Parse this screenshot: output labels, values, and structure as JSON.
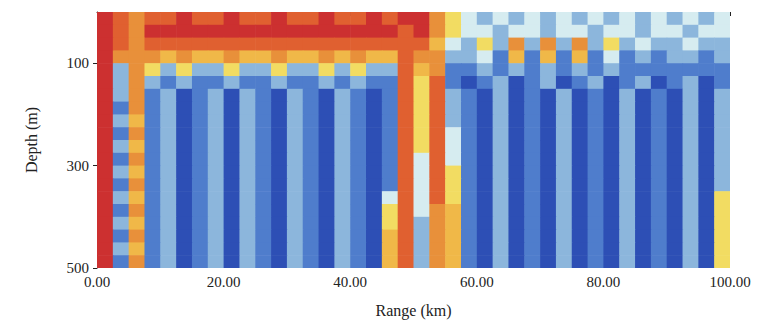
{
  "chart_data": {
    "type": "heatmap",
    "x_label": "Range (km)",
    "y_label": "Depth (m)",
    "xlim": [
      0,
      100
    ],
    "ylim": [
      0,
      500
    ],
    "xticks": [
      {
        "value": 0,
        "label": "0.00"
      },
      {
        "value": 20,
        "label": "20.00"
      },
      {
        "value": 40,
        "label": "40.00"
      },
      {
        "value": 60,
        "label": "60.00"
      },
      {
        "value": 80,
        "label": "80.00"
      },
      {
        "value": 100,
        "label": "100.00"
      }
    ],
    "yticks": [
      100,
      300,
      500
    ],
    "grid": false,
    "range_edges": [
      0,
      2.5,
      5,
      7.5,
      10,
      12.5,
      15,
      17.5,
      20,
      22.5,
      25,
      27.5,
      30,
      32.5,
      35,
      37.5,
      40,
      42.5,
      45,
      47.5,
      50,
      52.5,
      55,
      57.5,
      60,
      62.5,
      65,
      67.5,
      70,
      72.5,
      75,
      77.5,
      80,
      82.5,
      85,
      87.5,
      90,
      92.5,
      95,
      97.5,
      100
    ],
    "depth_edges": [
      0,
      25,
      50,
      75,
      100,
      125,
      150,
      175,
      200,
      225,
      250,
      275,
      300,
      325,
      350,
      375,
      400,
      425,
      450,
      475,
      500
    ],
    "color_range": [
      0,
      9
    ],
    "colors": [
      "#1c2a8c",
      "#2d4fb5",
      "#4f7dcc",
      "#8cb6dc",
      "#d6ecf0",
      "#f2dc62",
      "#f0b848",
      "#e8903a",
      "#e06030",
      "#cc3030"
    ],
    "cells": [
      [
        9,
        8,
        7,
        8,
        8,
        9,
        8,
        8,
        9,
        8,
        8,
        9,
        8,
        8,
        9,
        8,
        8,
        9,
        8,
        9,
        9,
        7,
        5,
        4,
        3,
        4,
        3,
        4,
        3,
        4,
        3,
        4,
        3,
        4,
        3,
        4,
        3,
        4,
        3,
        4
      ],
      [
        9,
        8,
        7,
        9,
        9,
        9,
        9,
        9,
        9,
        9,
        9,
        9,
        9,
        9,
        9,
        9,
        9,
        9,
        9,
        8,
        9,
        7,
        5,
        4,
        4,
        3,
        4,
        4,
        3,
        4,
        4,
        3,
        4,
        4,
        3,
        4,
        4,
        3,
        4,
        4
      ],
      [
        9,
        8,
        7,
        8,
        8,
        8,
        8,
        8,
        8,
        8,
        8,
        8,
        8,
        8,
        8,
        8,
        8,
        8,
        8,
        8,
        8,
        6,
        4,
        3,
        5,
        3,
        7,
        3,
        7,
        3,
        7,
        3,
        5,
        3,
        4,
        3,
        3,
        4,
        3,
        3
      ],
      [
        9,
        7,
        7,
        7,
        6,
        7,
        6,
        6,
        7,
        6,
        6,
        7,
        6,
        6,
        7,
        6,
        7,
        6,
        6,
        8,
        7,
        7,
        3,
        3,
        4,
        2,
        6,
        2,
        6,
        2,
        6,
        2,
        4,
        2,
        3,
        2,
        3,
        3,
        2,
        3
      ],
      [
        9,
        3,
        7,
        5,
        3,
        5,
        3,
        3,
        5,
        3,
        3,
        5,
        3,
        3,
        5,
        3,
        5,
        3,
        3,
        8,
        6,
        7,
        2,
        2,
        3,
        2,
        3,
        2,
        3,
        2,
        3,
        2,
        3,
        2,
        2,
        2,
        2,
        2,
        2,
        2
      ],
      [
        9,
        3,
        7,
        3,
        2,
        3,
        2,
        2,
        3,
        2,
        2,
        3,
        2,
        2,
        3,
        2,
        3,
        2,
        2,
        8,
        5,
        8,
        2,
        1,
        2,
        3,
        1,
        2,
        3,
        1,
        2,
        3,
        1,
        2,
        3,
        1,
        2,
        3,
        1,
        2
      ],
      [
        9,
        3,
        7,
        2,
        3,
        1,
        2,
        3,
        1,
        3,
        2,
        1,
        3,
        2,
        1,
        3,
        2,
        1,
        2,
        8,
        5,
        8,
        3,
        2,
        1,
        3,
        1,
        2,
        1,
        3,
        1,
        2,
        1,
        3,
        1,
        2,
        1,
        3,
        1,
        3
      ],
      [
        9,
        2,
        7,
        2,
        3,
        1,
        2,
        3,
        1,
        3,
        2,
        1,
        3,
        2,
        1,
        3,
        2,
        1,
        2,
        8,
        5,
        8,
        3,
        2,
        1,
        3,
        1,
        2,
        1,
        3,
        1,
        2,
        1,
        3,
        1,
        2,
        1,
        3,
        1,
        3
      ],
      [
        9,
        3,
        6,
        2,
        3,
        1,
        2,
        3,
        1,
        3,
        2,
        1,
        3,
        2,
        1,
        3,
        2,
        1,
        2,
        8,
        5,
        8,
        3,
        2,
        1,
        3,
        1,
        2,
        1,
        3,
        1,
        2,
        1,
        3,
        1,
        2,
        1,
        3,
        1,
        3
      ],
      [
        9,
        2,
        7,
        2,
        3,
        1,
        2,
        3,
        1,
        3,
        2,
        1,
        3,
        2,
        1,
        3,
        2,
        1,
        2,
        8,
        5,
        8,
        4,
        2,
        1,
        3,
        1,
        2,
        1,
        3,
        1,
        2,
        1,
        3,
        1,
        2,
        1,
        3,
        1,
        3
      ],
      [
        9,
        3,
        6,
        2,
        3,
        1,
        2,
        3,
        1,
        3,
        2,
        1,
        3,
        2,
        1,
        3,
        2,
        1,
        2,
        8,
        5,
        8,
        4,
        2,
        1,
        3,
        1,
        2,
        1,
        3,
        1,
        2,
        1,
        3,
        1,
        2,
        1,
        3,
        1,
        3
      ],
      [
        9,
        2,
        7,
        2,
        3,
        1,
        2,
        3,
        1,
        3,
        2,
        1,
        3,
        2,
        1,
        3,
        2,
        1,
        2,
        8,
        4,
        8,
        4,
        2,
        1,
        3,
        1,
        2,
        1,
        3,
        1,
        2,
        1,
        3,
        1,
        2,
        1,
        3,
        1,
        3
      ],
      [
        9,
        3,
        6,
        2,
        3,
        1,
        2,
        3,
        1,
        3,
        2,
        1,
        3,
        2,
        1,
        3,
        2,
        1,
        2,
        8,
        4,
        8,
        5,
        2,
        1,
        3,
        1,
        2,
        1,
        3,
        1,
        2,
        1,
        3,
        1,
        2,
        1,
        3,
        1,
        3
      ],
      [
        9,
        2,
        7,
        2,
        3,
        1,
        2,
        3,
        1,
        3,
        2,
        1,
        3,
        2,
        1,
        3,
        2,
        1,
        2,
        8,
        4,
        8,
        5,
        2,
        1,
        3,
        1,
        2,
        1,
        3,
        1,
        2,
        1,
        3,
        1,
        2,
        1,
        3,
        1,
        3
      ],
      [
        9,
        3,
        6,
        2,
        3,
        1,
        2,
        3,
        1,
        3,
        2,
        1,
        3,
        2,
        1,
        3,
        2,
        1,
        4,
        8,
        4,
        8,
        5,
        2,
        1,
        3,
        1,
        2,
        1,
        3,
        1,
        2,
        1,
        3,
        1,
        2,
        1,
        3,
        1,
        5
      ],
      [
        9,
        2,
        7,
        2,
        3,
        1,
        2,
        3,
        1,
        3,
        2,
        1,
        3,
        2,
        1,
        3,
        2,
        1,
        5,
        8,
        4,
        7,
        6,
        2,
        1,
        3,
        1,
        2,
        1,
        3,
        1,
        2,
        1,
        3,
        1,
        2,
        1,
        3,
        1,
        5
      ],
      [
        9,
        3,
        6,
        2,
        3,
        1,
        2,
        3,
        1,
        3,
        2,
        1,
        3,
        2,
        1,
        3,
        2,
        1,
        5,
        8,
        3,
        7,
        6,
        2,
        1,
        3,
        1,
        2,
        1,
        3,
        1,
        2,
        1,
        3,
        1,
        2,
        1,
        3,
        1,
        5
      ],
      [
        9,
        2,
        7,
        2,
        3,
        1,
        2,
        3,
        1,
        3,
        2,
        1,
        3,
        2,
        1,
        3,
        2,
        1,
        6,
        8,
        3,
        7,
        6,
        2,
        1,
        3,
        1,
        2,
        1,
        3,
        1,
        2,
        1,
        3,
        1,
        2,
        1,
        3,
        1,
        5
      ],
      [
        9,
        3,
        6,
        2,
        3,
        1,
        2,
        3,
        1,
        3,
        2,
        1,
        3,
        2,
        1,
        3,
        2,
        1,
        6,
        8,
        3,
        7,
        6,
        2,
        1,
        3,
        1,
        2,
        1,
        3,
        1,
        2,
        1,
        3,
        1,
        2,
        1,
        3,
        1,
        5
      ],
      [
        9,
        2,
        7,
        2,
        3,
        1,
        2,
        3,
        1,
        3,
        2,
        1,
        3,
        2,
        1,
        3,
        2,
        1,
        6,
        8,
        3,
        7,
        6,
        2,
        1,
        3,
        1,
        2,
        1,
        3,
        1,
        2,
        1,
        3,
        1,
        2,
        1,
        3,
        1,
        5
      ]
    ]
  }
}
